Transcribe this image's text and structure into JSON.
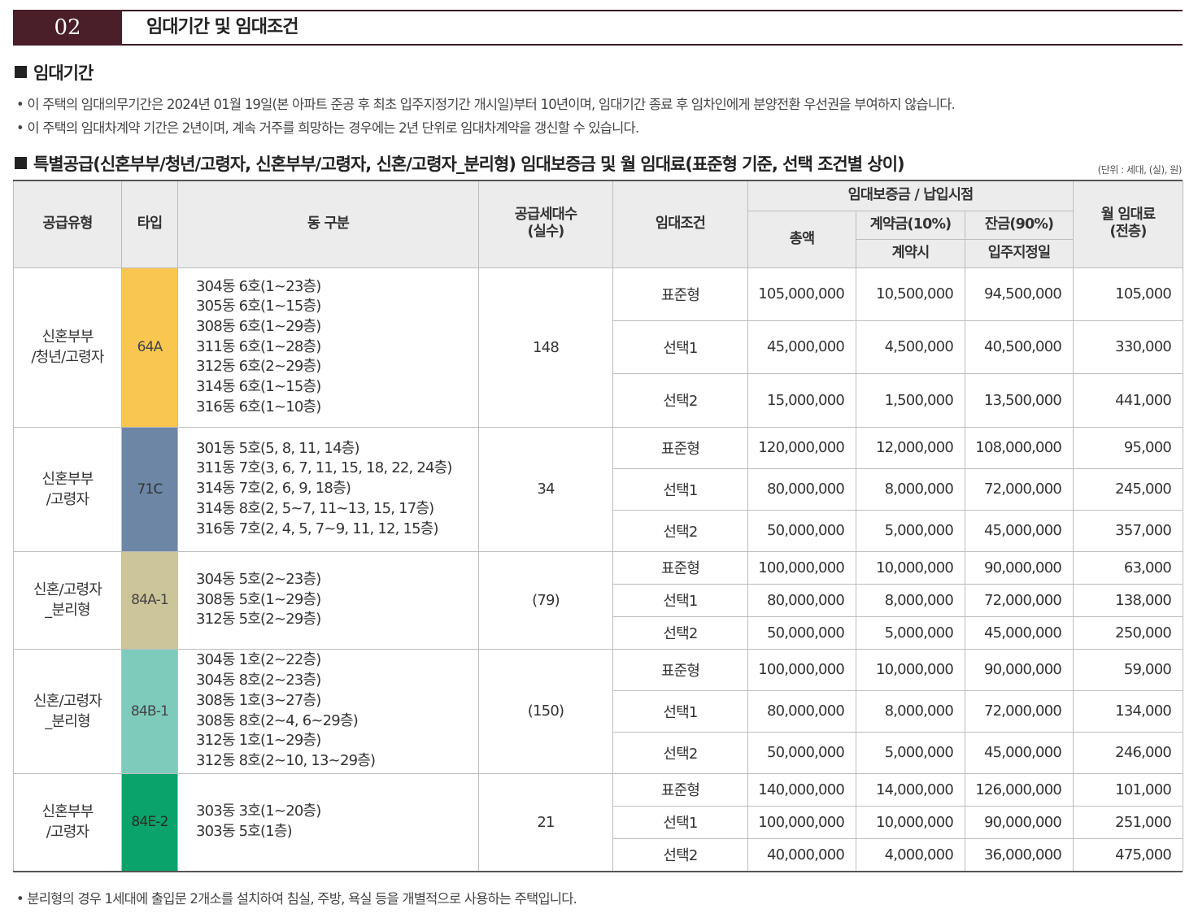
{
  "section": {
    "number": "02",
    "title": "임대기간 및 임대조건"
  },
  "period": {
    "heading": "임대기간",
    "bullets": [
      "• 이 주택의 임대의무기간은 2024년 01월 19일(본 아파트 준공 후 최초 입주지정기간 개시일)부터 10년이며, 임대기간 종료 후 임차인에게 분양전환 우선권을 부여하지 않습니다.",
      "• 이 주택의 임대차계약 기간은 2년이며, 계속 거주를 희망하는 경우에는 2년 단위로 임대차계약을 갱신할 수 있습니다."
    ]
  },
  "conditions": {
    "heading": "특별공급(신혼부부/청년/고령자, 신혼부부/고령자, 신혼/고령자_분리형) 임대보증금 및 월 임대료(표준형 기준, 선택 조건별 상이)",
    "unit_note": "(단위 : 세대, (실), 원)",
    "headers": {
      "supply_type": "공급유형",
      "type": "타입",
      "dong": "동 구분",
      "households": "공급세대수\n(실수)",
      "condition": "임대조건",
      "deposit_group": "임대보증금 / 납입시점",
      "total": "총액",
      "contract_pct": "계약금(10%)",
      "contract_time": "계약시",
      "balance_pct": "잔금(90%)",
      "balance_time": "입주지정일",
      "monthly": "월 임대료\n(전층)"
    },
    "groups": [
      {
        "supply": "신혼부부\n/청년/고령자",
        "type": "64A",
        "color": "#f9c74f",
        "text_color": "#444444",
        "dongs": "304동 6호(1~23층)\n305동 6호(1~15층)\n308동 6호(1~29층)\n311동 6호(1~28층)\n312동 6호(2~29층)\n314동 6호(1~15층)\n316동 6호(1~10층)",
        "households": "148",
        "rows": [
          {
            "cond": "표준형",
            "total": "105,000,000",
            "contract": "10,500,000",
            "balance": "94,500,000",
            "monthly": "105,000"
          },
          {
            "cond": "선택1",
            "total": "45,000,000",
            "contract": "4,500,000",
            "balance": "40,500,000",
            "monthly": "330,000"
          },
          {
            "cond": "선택2",
            "total": "15,000,000",
            "contract": "1,500,000",
            "balance": "13,500,000",
            "monthly": "441,000"
          }
        ]
      },
      {
        "supply": "신혼부부\n/고령자",
        "type": "71C",
        "color": "#6d86a6",
        "text_color": "#333333",
        "dongs": "301동 5호(5, 8, 11, 14층)\n311동 7호(3, 6, 7, 11, 15, 18, 22, 24층)\n314동 7호(2, 6, 9, 18층)\n314동 8호(2, 5~7, 11~13, 15, 17층)\n316동 7호(2, 4, 5, 7~9, 11, 12, 15층)",
        "households": "34",
        "rows": [
          {
            "cond": "표준형",
            "total": "120,000,000",
            "contract": "12,000,000",
            "balance": "108,000,000",
            "monthly": "95,000"
          },
          {
            "cond": "선택1",
            "total": "80,000,000",
            "contract": "8,000,000",
            "balance": "72,000,000",
            "monthly": "245,000"
          },
          {
            "cond": "선택2",
            "total": "50,000,000",
            "contract": "5,000,000",
            "balance": "45,000,000",
            "monthly": "357,000"
          }
        ]
      },
      {
        "supply": "신혼/고령자\n_분리형",
        "type": "84A-1",
        "color": "#cdc59a",
        "text_color": "#444444",
        "dongs": "304동 5호(2~23층)\n308동 5호(1~29층)\n312동 5호(2~29층)",
        "households": "(79)",
        "rows": [
          {
            "cond": "표준형",
            "total": "100,000,000",
            "contract": "10,000,000",
            "balance": "90,000,000",
            "monthly": "63,000"
          },
          {
            "cond": "선택1",
            "total": "80,000,000",
            "contract": "8,000,000",
            "balance": "72,000,000",
            "monthly": "138,000"
          },
          {
            "cond": "선택2",
            "total": "50,000,000",
            "contract": "5,000,000",
            "balance": "45,000,000",
            "monthly": "250,000"
          }
        ]
      },
      {
        "supply": "신혼/고령자\n_분리형",
        "type": "84B-1",
        "color": "#7ecbbc",
        "text_color": "#444444",
        "dongs": "304동 1호(2~22층)\n304동 8호(2~23층)\n308동 1호(3~27층)\n308동 8호(2~4, 6~29층)\n312동 1호(1~29층)\n312동 8호(2~10, 13~29층)",
        "households": "(150)",
        "rows": [
          {
            "cond": "표준형",
            "total": "100,000,000",
            "contract": "10,000,000",
            "balance": "90,000,000",
            "monthly": "59,000"
          },
          {
            "cond": "선택1",
            "total": "80,000,000",
            "contract": "8,000,000",
            "balance": "72,000,000",
            "monthly": "134,000"
          },
          {
            "cond": "선택2",
            "total": "50,000,000",
            "contract": "5,000,000",
            "balance": "45,000,000",
            "monthly": "246,000"
          }
        ]
      },
      {
        "supply": "신혼부부\n/고령자",
        "type": "84E-2",
        "color": "#0aa36b",
        "text_color": "#2a2a2a",
        "dongs": "303동 3호(1~20층)\n303동 5호(1층)",
        "households": "21",
        "rows": [
          {
            "cond": "표준형",
            "total": "140,000,000",
            "contract": "14,000,000",
            "balance": "126,000,000",
            "monthly": "101,000"
          },
          {
            "cond": "선택1",
            "total": "100,000,000",
            "contract": "10,000,000",
            "balance": "90,000,000",
            "monthly": "251,000"
          },
          {
            "cond": "선택2",
            "total": "40,000,000",
            "contract": "4,000,000",
            "balance": "36,000,000",
            "monthly": "475,000"
          }
        ]
      }
    ]
  },
  "footnote": "• 분리형의 경우 1세대에 출입문 2개소를 설치하여 침실, 주방, 욕실 등을 개별적으로 사용하는 주택입니다."
}
